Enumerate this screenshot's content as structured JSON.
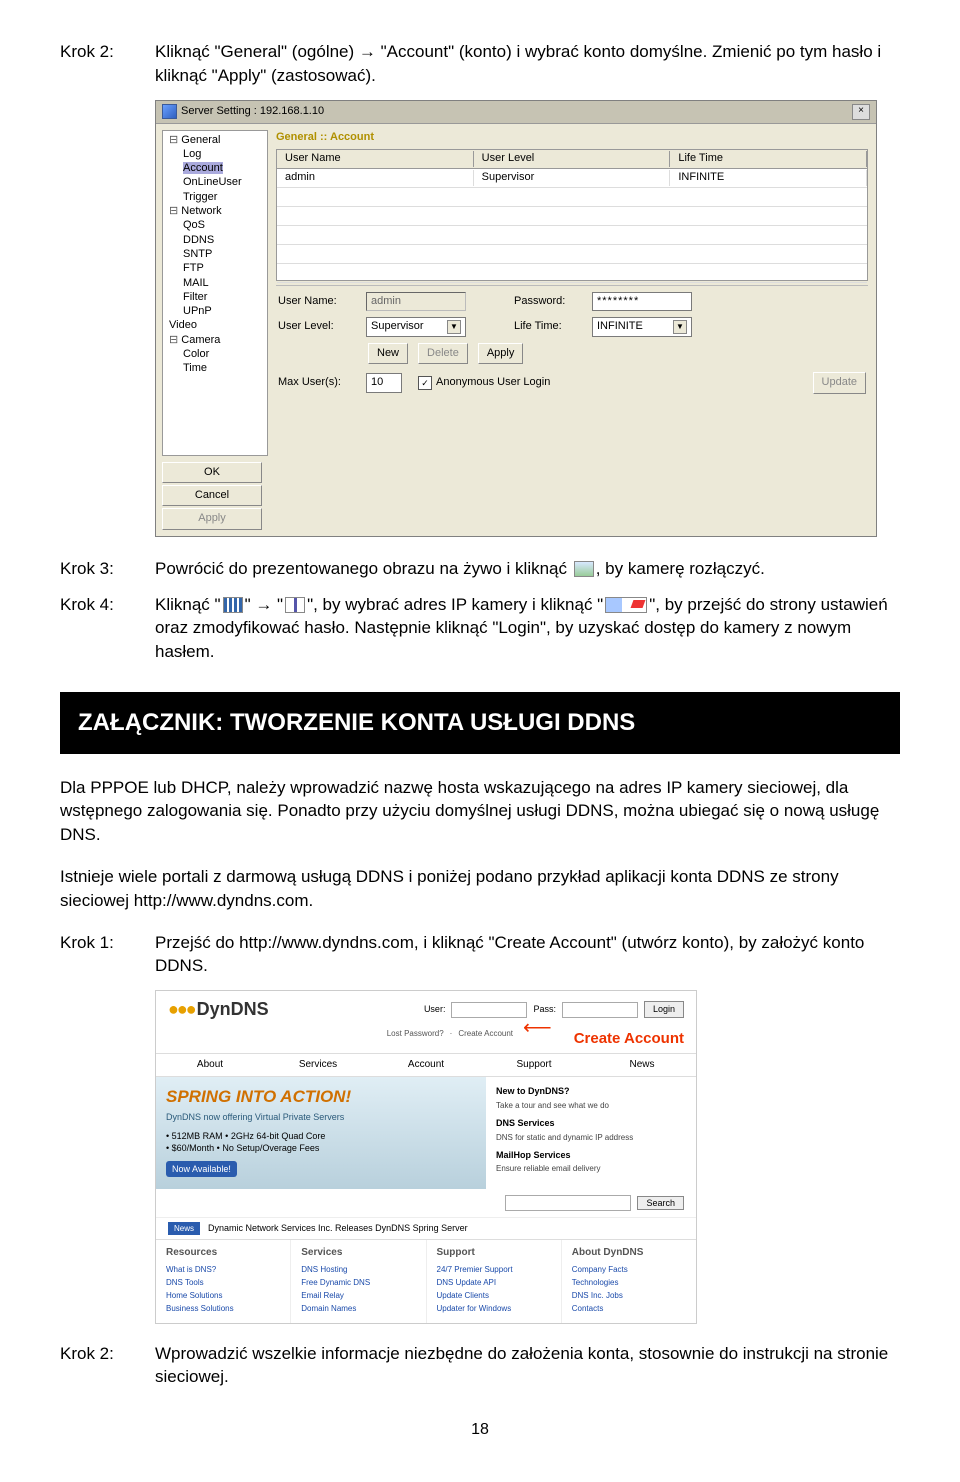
{
  "steps": {
    "k2": {
      "label": "Krok 2:",
      "text": "Kliknąć \"General\" (ogólne) → \"Account\" (konto) i wybrać konto domyślne. Zmienić po tym hasło i kliknąć \"Apply\" (zastosować)."
    },
    "k3": {
      "label": "Krok 3:",
      "pre": "Powrócić do prezentowanego obrazu na żywo i kliknąć ",
      "post": ", by kamerę rozłączyć."
    },
    "k4": {
      "label": "Krok 4:",
      "a": "Kliknąć \"",
      "b": "\" → \"",
      "c": "\", by wybrać adres IP kamery i kliknąć \"",
      "d": "\", by przejść do strony ustawień oraz zmodyfikować hasło. Następnie kliknąć \"Login\", by uzyskać dostęp do kamery z nowym hasłem."
    }
  },
  "win": {
    "title": "Server Setting : 192.168.1.10",
    "section": "General :: Account",
    "tree": [
      "General",
      "Log",
      "Account",
      "OnLineUser",
      "Trigger",
      "Network",
      "QoS",
      "DDNS",
      "SNTP",
      "FTP",
      "MAIL",
      "Filter",
      "UPnP",
      "Video",
      "Camera",
      "Color",
      "Time"
    ],
    "tree_levels": [
      1,
      2,
      2,
      2,
      2,
      1,
      2,
      2,
      2,
      2,
      2,
      2,
      2,
      1,
      1,
      2,
      2
    ],
    "tree_prefix": [
      "⊟",
      "",
      "",
      "",
      "",
      "⊟",
      "",
      "",
      "",
      "",
      "",
      "",
      "",
      "",
      "⊟",
      "",
      ""
    ],
    "tree_selected": 2,
    "btns": {
      "ok": "OK",
      "cancel": "Cancel",
      "apply": "Apply"
    },
    "grid_headers": [
      "User Name",
      "User Level",
      "Life Time"
    ],
    "grid_row": [
      "admin",
      "Supervisor",
      "INFINITE"
    ],
    "labels": {
      "username": "User Name:",
      "password": "Password:",
      "userlevel": "User Level:",
      "lifetime": "Life Time:",
      "maxusers": "Max User(s):",
      "anon": "Anonymous User Login"
    },
    "values": {
      "username": "admin",
      "password": "********",
      "userlevel": "Supervisor",
      "lifetime": "INFINITE",
      "maxusers": "10",
      "anon_checked": true
    },
    "actions": {
      "new": "New",
      "delete": "Delete",
      "apply": "Apply",
      "update": "Update"
    }
  },
  "banner": "ZAŁĄCZNIK: TWORZENIE KONTA USŁUGI DDNS",
  "para1": "Dla PPPOE lub DHCP, należy wprowadzić nazwę hosta wskazującego na adres IP kamery sieciowej, dla wstępnego zalogowania się. Ponadto przy użyciu domyślnej usługi DDNS, można ubiegać się o nową usługę DNS.",
  "para2": "Istnieje wiele portali z darmową usługą DDNS i poniżej podano przykład aplikacji konta DDNS ze strony sieciowej http://www.dyndns.com.",
  "krok1": {
    "label": "Krok 1:",
    "text": "Przejść do http://www.dyndns.com, i kliknąć \"Create Account\" (utwórz konto), by założyć konto DDNS."
  },
  "krok2_bottom": {
    "label": "Krok 2:",
    "text": "Wprowadzić wszelkie informacje niezbędne do założenia konta, stosownie do instrukcji na stronie sieciowej."
  },
  "dyndns": {
    "logo": "DynDNS",
    "user": "User:",
    "pass": "Pass:",
    "login": "Login",
    "lost": "Lost Password?",
    "create": "Create Account",
    "create_callout": "Create Account",
    "nav": [
      "About",
      "Services",
      "Account",
      "Support",
      "News"
    ],
    "promo_title": "SPRING INTO ACTION!",
    "promo_sub": "DynDNS now offering Virtual Private Servers",
    "promo_b1": "• 512MB RAM • 2GHz 64-bit Quad Core",
    "promo_b2": "• $60/Month • No Setup/Overage Fees",
    "promo_btn": "Now Available!",
    "right": {
      "t1": "New to DynDNS?",
      "p1": "Take a tour and see what we do",
      "t2": "DNS Services",
      "p2": "DNS for static and dynamic IP address",
      "t3": "MailHop Services",
      "p3": "Ensure reliable email delivery"
    },
    "search": "Search",
    "news_badge": "News",
    "news_text": "Dynamic Network Services Inc. Releases DynDNS Spring Server",
    "cols": {
      "h": [
        "Resources",
        "Services",
        "Support",
        "About DynDNS"
      ],
      "c0": [
        "What is DNS?",
        "DNS Tools",
        "Home Solutions",
        "Business Solutions"
      ],
      "c1": [
        "DNS Hosting",
        "Free Dynamic DNS",
        "Email Relay",
        "Domain Names"
      ],
      "c2": [
        "24/7 Premier Support",
        "DNS Update API",
        "Update Clients",
        "Updater for Windows"
      ],
      "c3": [
        "Company Facts",
        "Technologies",
        "DNS Inc. Jobs",
        "Contacts"
      ]
    }
  },
  "page_num": "18"
}
